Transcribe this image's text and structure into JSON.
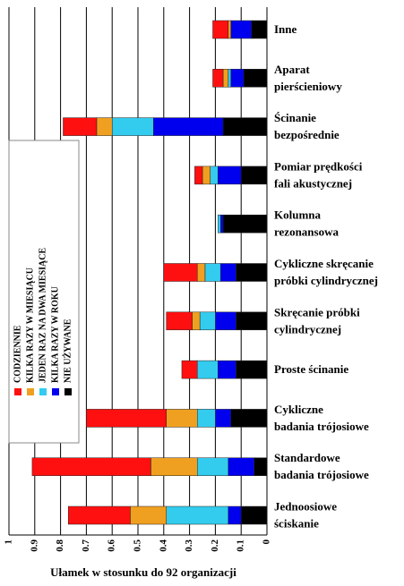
{
  "chart_data": {
    "type": "bar",
    "orientation": "horizontal",
    "stacked": true,
    "reversed_x": true,
    "xlabel": "Ułamek w stosunku do 92 organizacji",
    "categories": [
      [
        "Inne"
      ],
      [
        "Aparat",
        "pierścieniowy"
      ],
      [
        "Ścinanie",
        "bezpośrednie"
      ],
      [
        "Pomiar prędkości",
        "fali akustycznej"
      ],
      [
        "Kolumna",
        "rezonansowa"
      ],
      [
        "Cykliczne skręcanie",
        "próbki cylindrycznej"
      ],
      [
        "Skręcanie próbki",
        "cylindrycznej"
      ],
      [
        "Proste ścinanie"
      ],
      [
        "Cykliczne",
        "badania trójosiowe"
      ],
      [
        "Standardowe",
        "badania trójosiowe"
      ],
      [
        "Jednoosiowe",
        "ściskanie"
      ]
    ],
    "series": [
      {
        "name": "NIE UŻYWANE",
        "color": "#000000",
        "values": [
          0.06,
          0.09,
          0.17,
          0.1,
          0.17,
          0.12,
          0.12,
          0.12,
          0.14,
          0.05,
          0.1
        ]
      },
      {
        "name": "KILKA RAZY W ROKU",
        "color": "#0000ee",
        "values": [
          0.08,
          0.05,
          0.27,
          0.09,
          0.01,
          0.06,
          0.08,
          0.07,
          0.06,
          0.1,
          0.05
        ]
      },
      {
        "name": "JEDEN RAZ NA DWA MIESIĄCE",
        "color": "#33ccee",
        "values": [
          0,
          0.01,
          0.16,
          0.03,
          0.01,
          0.06,
          0.06,
          0.08,
          0.07,
          0.12,
          0.24
        ]
      },
      {
        "name": "KILKA RAZY W MIESIĄCU",
        "color": "#f0a020",
        "values": [
          0.01,
          0.02,
          0.06,
          0.03,
          0,
          0.03,
          0.03,
          0,
          0.12,
          0.18,
          0.14
        ]
      },
      {
        "name": "CODZIENNIE",
        "color": "#ff1010",
        "values": [
          0.06,
          0.04,
          0.13,
          0.03,
          0,
          0.13,
          0.1,
          0.06,
          0.31,
          0.46,
          0.24
        ]
      }
    ],
    "xlim": [
      1,
      0
    ],
    "xticks": [
      1,
      0.9,
      0.8,
      0.7,
      0.6,
      0.5,
      0.4,
      0.3,
      0.2,
      0.1,
      0
    ],
    "grid": true,
    "legend": "left"
  }
}
